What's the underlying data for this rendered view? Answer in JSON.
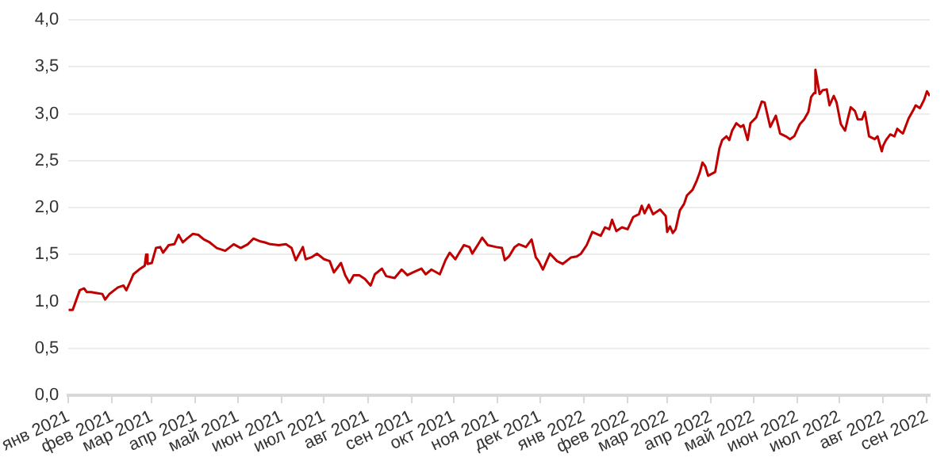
{
  "chart_data": {
    "type": "line",
    "x": [
      "2021-01-01",
      "2021-01-04",
      "2021-01-09",
      "2021-01-12",
      "2021-01-14",
      "2021-01-17",
      "2021-01-21",
      "2021-01-25",
      "2021-01-27",
      "2021-01-30",
      "2021-02-05",
      "2021-02-09",
      "2021-02-11",
      "2021-02-14",
      "2021-02-16",
      "2021-02-20",
      "2021-02-24",
      "2021-02-25",
      "2021-02-26",
      "2021-03-01",
      "2021-03-04",
      "2021-03-07",
      "2021-03-09",
      "2021-03-13",
      "2021-03-17",
      "2021-03-20",
      "2021-03-23",
      "2021-03-26",
      "2021-03-30",
      "2021-04-03",
      "2021-04-07",
      "2021-04-11",
      "2021-04-16",
      "2021-04-22",
      "2021-04-28",
      "2021-05-03",
      "2021-05-08",
      "2021-05-12",
      "2021-05-17",
      "2021-05-20",
      "2021-05-24",
      "2021-05-30",
      "2021-06-04",
      "2021-06-08",
      "2021-06-11",
      "2021-06-16",
      "2021-06-18",
      "2021-06-22",
      "2021-06-26",
      "2021-07-01",
      "2021-07-05",
      "2021-07-08",
      "2021-07-11",
      "2021-07-13",
      "2021-07-16",
      "2021-07-19",
      "2021-07-22",
      "2021-07-26",
      "2021-07-30",
      "2021-08-03",
      "2021-08-06",
      "2021-08-11",
      "2021-08-14",
      "2021-08-20",
      "2021-08-25",
      "2021-08-29",
      "2021-09-02",
      "2021-09-08",
      "2021-09-11",
      "2021-09-15",
      "2021-09-21",
      "2021-09-25",
      "2021-09-28",
      "2021-10-02",
      "2021-10-08",
      "2021-10-12",
      "2021-10-14",
      "2021-10-19",
      "2021-10-21",
      "2021-10-25",
      "2021-10-31",
      "2021-11-04",
      "2021-11-06",
      "2021-11-09",
      "2021-11-13",
      "2021-11-16",
      "2021-11-21",
      "2021-11-25",
      "2021-11-28",
      "2021-11-30",
      "2021-12-03",
      "2021-12-08",
      "2021-12-13",
      "2021-12-17",
      "2021-12-23",
      "2021-12-27",
      "2021-12-30",
      "2022-01-03",
      "2022-01-07",
      "2022-01-13",
      "2022-01-16",
      "2022-01-19",
      "2022-01-21",
      "2022-01-24",
      "2022-01-28",
      "2022-02-01",
      "2022-02-05",
      "2022-02-09",
      "2022-02-11",
      "2022-02-13",
      "2022-02-16",
      "2022-02-19",
      "2022-02-24",
      "2022-02-28",
      "2022-03-01",
      "2022-03-03",
      "2022-03-05",
      "2022-03-07",
      "2022-03-10",
      "2022-03-13",
      "2022-03-15",
      "2022-03-19",
      "2022-03-22",
      "2022-03-24",
      "2022-03-26",
      "2022-03-28",
      "2022-03-30",
      "2022-04-04",
      "2022-04-07",
      "2022-04-09",
      "2022-04-12",
      "2022-04-14",
      "2022-04-16",
      "2022-04-19",
      "2022-04-22",
      "2022-04-24",
      "2022-04-27",
      "2022-04-29",
      "2022-05-03",
      "2022-05-07",
      "2022-05-09",
      "2022-05-13",
      "2022-05-15",
      "2022-05-17",
      "2022-05-20",
      "2022-05-24",
      "2022-05-27",
      "2022-05-30",
      "2022-06-03",
      "2022-06-06",
      "2022-06-09",
      "2022-06-11",
      "2022-06-13",
      "2022-06-14",
      "2022-06-17",
      "2022-06-19",
      "2022-06-22",
      "2022-06-24",
      "2022-06-27",
      "2022-06-29",
      "2022-07-02",
      "2022-07-05",
      "2022-07-07",
      "2022-07-09",
      "2022-07-12",
      "2022-07-14",
      "2022-07-17",
      "2022-07-19",
      "2022-07-22",
      "2022-07-26",
      "2022-07-28",
      "2022-07-31",
      "2022-08-01",
      "2022-08-03",
      "2022-08-06",
      "2022-08-09",
      "2022-08-11",
      "2022-08-14",
      "2022-08-15",
      "2022-08-19",
      "2022-08-22",
      "2022-08-24",
      "2022-08-27",
      "2022-08-30",
      "2022-09-01",
      "2022-09-03"
    ],
    "series": [
      {
        "color": "#c00000",
        "values": [
          0.91,
          0.91,
          1.12,
          1.14,
          1.1,
          1.1,
          1.09,
          1.08,
          1.02,
          1.08,
          1.15,
          1.17,
          1.12,
          1.22,
          1.29,
          1.34,
          1.38,
          1.5,
          1.4,
          1.41,
          1.57,
          1.58,
          1.52,
          1.6,
          1.61,
          1.71,
          1.63,
          1.67,
          1.72,
          1.71,
          1.66,
          1.63,
          1.57,
          1.54,
          1.61,
          1.57,
          1.61,
          1.67,
          1.64,
          1.63,
          1.61,
          1.6,
          1.61,
          1.57,
          1.44,
          1.58,
          1.45,
          1.47,
          1.51,
          1.45,
          1.43,
          1.31,
          1.37,
          1.41,
          1.28,
          1.2,
          1.28,
          1.28,
          1.24,
          1.17,
          1.29,
          1.35,
          1.27,
          1.25,
          1.34,
          1.28,
          1.31,
          1.35,
          1.29,
          1.34,
          1.29,
          1.44,
          1.52,
          1.45,
          1.6,
          1.58,
          1.51,
          1.63,
          1.68,
          1.6,
          1.58,
          1.57,
          1.44,
          1.48,
          1.58,
          1.61,
          1.58,
          1.66,
          1.47,
          1.43,
          1.34,
          1.51,
          1.43,
          1.4,
          1.47,
          1.48,
          1.51,
          1.6,
          1.74,
          1.7,
          1.79,
          1.77,
          1.87,
          1.75,
          1.79,
          1.77,
          1.9,
          1.93,
          2.02,
          1.94,
          2.03,
          1.93,
          1.98,
          1.91,
          1.74,
          1.8,
          1.73,
          1.77,
          1.97,
          2.04,
          2.13,
          2.19,
          2.29,
          2.37,
          2.48,
          2.44,
          2.34,
          2.38,
          2.63,
          2.72,
          2.76,
          2.72,
          2.82,
          2.9,
          2.86,
          2.88,
          2.72,
          2.9,
          2.96,
          3.13,
          3.12,
          2.86,
          2.92,
          2.98,
          2.79,
          2.76,
          2.73,
          2.76,
          2.89,
          2.94,
          3.02,
          3.18,
          3.22,
          3.47,
          3.21,
          3.25,
          3.26,
          3.09,
          3.19,
          3.12,
          2.89,
          2.82,
          2.95,
          3.07,
          3.03,
          2.94,
          2.94,
          3.02,
          2.76,
          2.73,
          2.76,
          2.6,
          2.66,
          2.72,
          2.78,
          2.76,
          2.84,
          2.8,
          2.79,
          2.95,
          3.03,
          3.09,
          3.06,
          3.15,
          3.24,
          3.19
        ]
      }
    ],
    "xlim": [
      "2021-01-01",
      "2022-09-03"
    ],
    "xticks": [
      {
        "value": "2021-01-01",
        "label": "янв 2021"
      },
      {
        "value": "2021-02-01",
        "label": "фев 2021"
      },
      {
        "value": "2021-03-01",
        "label": "мар 2021"
      },
      {
        "value": "2021-04-01",
        "label": "апр 2021"
      },
      {
        "value": "2021-05-01",
        "label": "май 2021"
      },
      {
        "value": "2021-06-01",
        "label": "июн 2021"
      },
      {
        "value": "2021-07-01",
        "label": "июл 2021"
      },
      {
        "value": "2021-08-01",
        "label": "авг 2021"
      },
      {
        "value": "2021-09-01",
        "label": "сен 2021"
      },
      {
        "value": "2021-10-01",
        "label": "окт 2021"
      },
      {
        "value": "2021-11-01",
        "label": "ноя 2021"
      },
      {
        "value": "2021-12-01",
        "label": "дек 2021"
      },
      {
        "value": "2022-01-01",
        "label": "янв 2022"
      },
      {
        "value": "2022-02-01",
        "label": "фев 2022"
      },
      {
        "value": "2022-03-01",
        "label": "мар 2022"
      },
      {
        "value": "2022-04-01",
        "label": "апр 2022"
      },
      {
        "value": "2022-05-01",
        "label": "май 2022"
      },
      {
        "value": "2022-06-01",
        "label": "июн 2022"
      },
      {
        "value": "2022-07-01",
        "label": "июл 2022"
      },
      {
        "value": "2022-08-01",
        "label": "авг 2022"
      },
      {
        "value": "2022-09-01",
        "label": "сен 2022"
      }
    ],
    "ylim": [
      0,
      4
    ],
    "yticks": [
      {
        "value": 0,
        "label": "0,0"
      },
      {
        "value": 0.5,
        "label": "0,5"
      },
      {
        "value": 1,
        "label": "1,0"
      },
      {
        "value": 1.5,
        "label": "1,5"
      },
      {
        "value": 2,
        "label": "2,0"
      },
      {
        "value": 2.5,
        "label": "2,5"
      },
      {
        "value": 3,
        "label": "3,0"
      },
      {
        "value": 3.5,
        "label": "3,5"
      },
      {
        "value": 4,
        "label": "4,0"
      }
    ],
    "grid": "y",
    "legend": false,
    "marker": "none",
    "line_style": "solid"
  }
}
